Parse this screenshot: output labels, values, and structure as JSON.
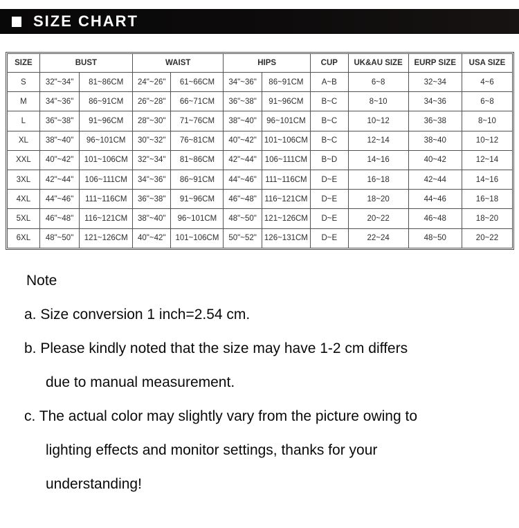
{
  "header": {
    "title": "SIZE CHART"
  },
  "colors": {
    "header_bg": "#0d0b0b",
    "header_text": "#ffffff",
    "table_border": "#525252",
    "body_text": "#0a0a0a"
  },
  "table": {
    "columns": [
      "SIZE",
      "BUST",
      "WAIST",
      "HIPS",
      "CUP",
      "UK&AU SIZE",
      "EURP SIZE",
      "USA SIZE"
    ],
    "rows": [
      [
        "S",
        "32\"~34\"",
        "81~86CM",
        "24\"~26\"",
        "61~66CM",
        "34\"~36\"",
        "86~91CM",
        "A~B",
        "6~8",
        "32~34",
        "4~6"
      ],
      [
        "M",
        "34\"~36\"",
        "86~91CM",
        "26\"~28\"",
        "66~71CM",
        "36\"~38\"",
        "91~96CM",
        "B~C",
        "8~10",
        "34~36",
        "6~8"
      ],
      [
        "L",
        "36\"~38\"",
        "91~96CM",
        "28\"~30\"",
        "71~76CM",
        "38\"~40\"",
        "96~101CM",
        "B~C",
        "10~12",
        "36~38",
        "8~10"
      ],
      [
        "XL",
        "38\"~40\"",
        "96~101CM",
        "30\"~32\"",
        "76~81CM",
        "40\"~42\"",
        "101~106CM",
        "B~C",
        "12~14",
        "38~40",
        "10~12"
      ],
      [
        "XXL",
        "40\"~42\"",
        "101~106CM",
        "32\"~34\"",
        "81~86CM",
        "42\"~44\"",
        "106~111CM",
        "B~D",
        "14~16",
        "40~42",
        "12~14"
      ],
      [
        "3XL",
        "42\"~44\"",
        "106~111CM",
        "34\"~36\"",
        "86~91CM",
        "44\"~46\"",
        "111~116CM",
        "D~E",
        "16~18",
        "42~44",
        "14~16"
      ],
      [
        "4XL",
        "44\"~46\"",
        "111~116CM",
        "36\"~38\"",
        "91~96CM",
        "46\"~48\"",
        "116~121CM",
        "D~E",
        "18~20",
        "44~46",
        "16~18"
      ],
      [
        "5XL",
        "46\"~48\"",
        "116~121CM",
        "38\"~40\"",
        "96~101CM",
        "48\"~50\"",
        "121~126CM",
        "D~E",
        "20~22",
        "46~48",
        "18~20"
      ],
      [
        "6XL",
        "48\"~50\"",
        "121~126CM",
        "40\"~42\"",
        "101~106CM",
        "50\"~52\"",
        "126~131CM",
        "D~E",
        "22~24",
        "48~50",
        "20~22"
      ]
    ]
  },
  "notes": {
    "heading": "Note",
    "lines": [
      {
        "text": "a. Size conversion 1 inch=2.54 cm.",
        "indent": false
      },
      {
        "text": "b. Please kindly noted that the size may have 1-2 cm differs",
        "indent": false
      },
      {
        "text": "due to manual measurement.",
        "indent": true
      },
      {
        "text": "c. The actual color may slightly vary from the picture owing to",
        "indent": false
      },
      {
        "text": "lighting effects and monitor settings, thanks for your",
        "indent": true
      },
      {
        "text": "understanding!",
        "indent": true
      }
    ]
  }
}
